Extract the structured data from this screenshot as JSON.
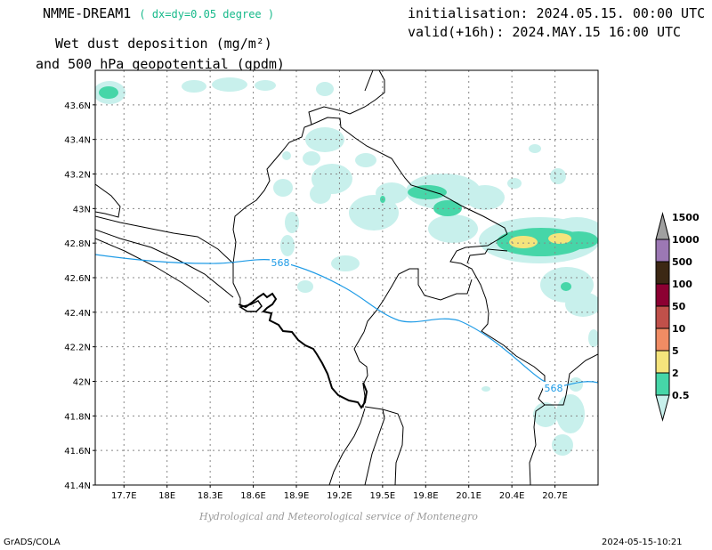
{
  "header": {
    "model": "NMME-DREAM1",
    "resolution": "( dx=dy=0.05 degree )",
    "title_line1": "Wet dust deposition (mg/m²)",
    "title_line2": "and 500 hPa geopotential (gpdm)",
    "initialisation": "initialisation: 2024.05.15. 00:00 UTC",
    "valid": "valid(+16h): 2024.MAY.15 16:00 UTC"
  },
  "map": {
    "lat_ticks": [
      "43.6N",
      "43.4N",
      "43.2N",
      "43N",
      "42.8N",
      "42.6N",
      "42.4N",
      "42.2N",
      "42N",
      "41.8N",
      "41.6N",
      "41.4N"
    ],
    "lat_values": [
      43.6,
      43.4,
      43.2,
      43.0,
      42.8,
      42.6,
      42.4,
      42.2,
      42.0,
      41.8,
      41.6,
      41.4
    ],
    "lon_ticks": [
      "17.7E",
      "18E",
      "18.3E",
      "18.6E",
      "18.9E",
      "19.2E",
      "19.5E",
      "19.8E",
      "20.1E",
      "20.4E",
      "20.7E"
    ],
    "lon_values": [
      17.7,
      18.0,
      18.3,
      18.6,
      18.9,
      19.2,
      19.5,
      19.8,
      20.1,
      20.4,
      20.7
    ],
    "lon_range": [
      17.5,
      21.0
    ],
    "lat_range": [
      41.4,
      43.8
    ],
    "gridlines": true,
    "contour_labels": [
      "568",
      "568"
    ],
    "contour_color": "#1e9be6"
  },
  "legend": {
    "labels": [
      "0.5",
      "2",
      "5",
      "10",
      "50",
      "100",
      "500",
      "1000",
      "1500"
    ],
    "colors": [
      "#c8f0ec",
      "#46d6a8",
      "#f5e47c",
      "#f08c64",
      "#c0504a",
      "#8c0032",
      "#3c2814",
      "#9c78b4",
      "#a0a0a0"
    ]
  },
  "footer": {
    "credit": "Hydrological and Meteorological service of Montenegro",
    "software": "GrADS/COLA",
    "timestamp": "2024-05-15-10:21"
  }
}
